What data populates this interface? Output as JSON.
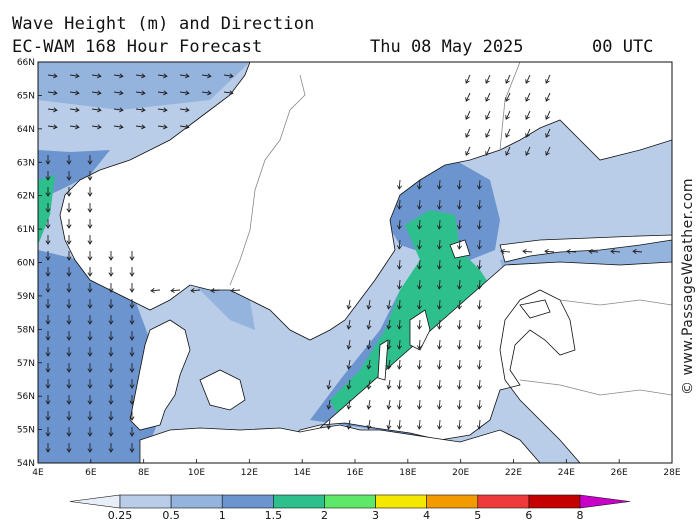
{
  "header": {
    "title": "Wave Height (m) and Direction",
    "model_line": "EC-WAM 168 Hour Forecast",
    "date": "Thu 08 May 2025",
    "time": "00 UTC"
  },
  "watermark": "© www.PassageWeather.com",
  "map": {
    "region": "Baltic Sea / North Sea",
    "lat_range": [
      54,
      66
    ],
    "lon_range": [
      4,
      28
    ],
    "lat_ticks": [
      "66N",
      "65N",
      "64N",
      "63N",
      "62N",
      "61N",
      "60N",
      "59N",
      "58N",
      "57N",
      "56N",
      "55N",
      "54N"
    ],
    "lon_ticks": [
      "4E",
      "6E",
      "8E",
      "10E",
      "12E",
      "14E",
      "16E",
      "18E",
      "20E",
      "22E",
      "24E",
      "26E",
      "28E"
    ],
    "land_color": "#ffffff",
    "arrow_color": "#222222"
  },
  "legend": {
    "labels": [
      "0.25",
      "0.5",
      "1",
      "1.5",
      "2",
      "3",
      "4",
      "5",
      "6",
      "8"
    ],
    "colors": [
      "#e8eef8",
      "#b9cce8",
      "#94b4dd",
      "#6c95d0",
      "#2ec08c",
      "#5ee86a",
      "#f4e800",
      "#f39a00",
      "#ee3a3a",
      "#c40000",
      "#c800c8"
    ]
  }
}
